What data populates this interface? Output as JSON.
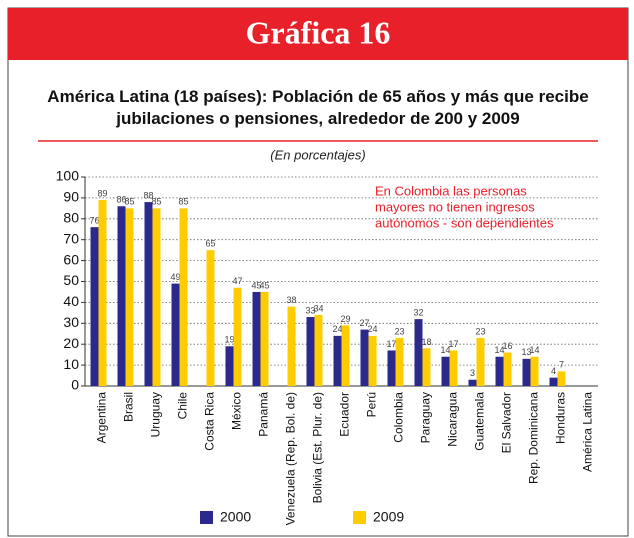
{
  "header": {
    "title": "Gráfica 16"
  },
  "chart_data": {
    "type": "bar",
    "title": "América Latina (18 países): Población de 65 años y más que recibe jubilaciones o pensiones, alrededor de 200 y 2009",
    "subtitle": "(En porcentajes)",
    "annotation": [
      "En Colombia las personas",
      "mayores no tienen ingresos",
      "autónomos - son dependientes"
    ],
    "categories": [
      "Argentina",
      "Brasil",
      "Uruguay",
      "Chile",
      "Costa Rica",
      "México",
      "Panamá",
      "Venezuela (Rep. Bol. de)",
      "Bolivia (Est. Plur. de)",
      "Ecuador",
      "Perú",
      "Colombia",
      "Paraguay",
      "Nicaragua",
      "Guatemala",
      "El Salvador",
      "Rep. Dominicana",
      "Honduras",
      "América Latina"
    ],
    "series": [
      {
        "name": "2000",
        "color": "#2b2a8c",
        "values": [
          76,
          86,
          88,
          49,
          null,
          19,
          45,
          null,
          33,
          24,
          27,
          17,
          32,
          14,
          3,
          14,
          13,
          4,
          null
        ]
      },
      {
        "name": "2009",
        "color": "#ffcc00",
        "values": [
          89,
          85,
          85,
          85,
          65,
          47,
          45,
          38,
          34,
          29,
          24,
          23,
          18,
          17,
          23,
          16,
          14,
          7,
          null
        ]
      }
    ],
    "ylim": [
      0,
      100
    ],
    "yticks": [
      0,
      10,
      20,
      30,
      40,
      50,
      60,
      70,
      80,
      90,
      100
    ],
    "grid": true,
    "legend": "bottom"
  }
}
